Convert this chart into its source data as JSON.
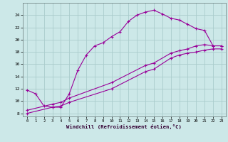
{
  "xlabel": "Windchill (Refroidissement éolien,°C)",
  "bg_color": "#cce8e8",
  "grid_color": "#aacccc",
  "line_color": "#990099",
  "xlim": [
    -0.5,
    23.5
  ],
  "ylim": [
    7.5,
    26.0
  ],
  "yticks": [
    8,
    10,
    12,
    14,
    16,
    18,
    20,
    22,
    24
  ],
  "xticks": [
    0,
    1,
    2,
    3,
    4,
    5,
    6,
    7,
    8,
    9,
    10,
    11,
    12,
    13,
    14,
    15,
    16,
    17,
    18,
    19,
    20,
    21,
    22,
    23
  ],
  "curve1_x": [
    0,
    1,
    2,
    3,
    4,
    5,
    6,
    7,
    8,
    9,
    10,
    11,
    12,
    13,
    14,
    15,
    16,
    17,
    18,
    19,
    20,
    21,
    22,
    23
  ],
  "curve1_y": [
    11.8,
    11.2,
    9.2,
    9.0,
    9.0,
    11.2,
    15.0,
    17.5,
    19.0,
    19.5,
    20.5,
    21.3,
    23.0,
    24.0,
    24.5,
    24.8,
    24.2,
    23.5,
    23.2,
    22.5,
    21.8,
    21.5,
    19.0,
    19.0
  ],
  "curve2_x": [
    0,
    3,
    4,
    5,
    10,
    14,
    15,
    17,
    18,
    19,
    20,
    21,
    22,
    23
  ],
  "curve2_y": [
    8.5,
    9.5,
    9.8,
    10.5,
    13.0,
    15.8,
    16.2,
    17.8,
    18.2,
    18.5,
    19.0,
    19.2,
    19.0,
    19.0
  ],
  "curve3_x": [
    0,
    3,
    4,
    5,
    10,
    14,
    15,
    17,
    18,
    19,
    20,
    21,
    22,
    23
  ],
  "curve3_y": [
    8.0,
    9.0,
    9.2,
    9.8,
    12.0,
    14.8,
    15.2,
    17.0,
    17.5,
    17.8,
    18.0,
    18.3,
    18.5,
    18.5
  ]
}
